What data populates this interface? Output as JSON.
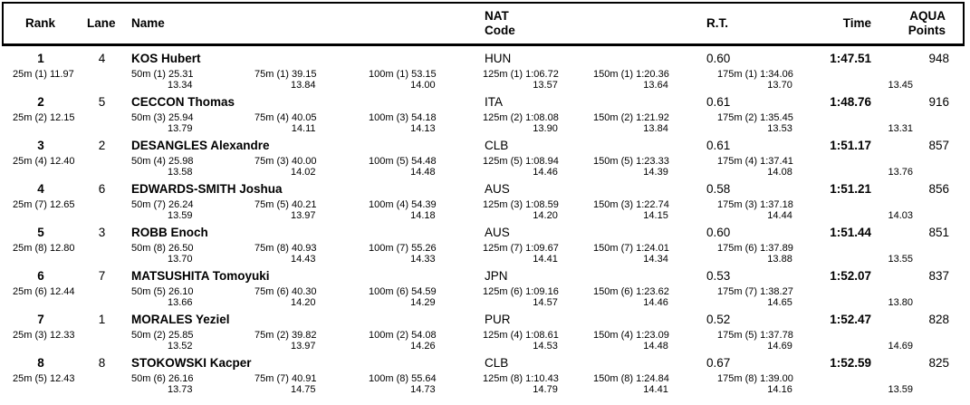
{
  "header": {
    "rank": "Rank",
    "lane": "Lane",
    "name": "Name",
    "nat_line1": "NAT",
    "nat_line2": "Code",
    "rt": "R.T.",
    "time": "Time",
    "points_line1": "AQUA",
    "points_line2": "Points"
  },
  "results": [
    {
      "rank": "1",
      "lane": "4",
      "name": "KOS Hubert",
      "nat": "HUN",
      "rt": "0.60",
      "time": "1:47.51",
      "points": "948",
      "splits": [
        {
          "d": "25m",
          "p": "(1)",
          "t": "11.97",
          "s": ""
        },
        {
          "d": "50m",
          "p": "(1)",
          "t": "25.31",
          "s": "13.34"
        },
        {
          "d": "75m",
          "p": "(1)",
          "t": "39.15",
          "s": "13.84"
        },
        {
          "d": "100m",
          "p": "(1)",
          "t": "53.15",
          "s": "14.00"
        },
        {
          "d": "125m",
          "p": "(1)",
          "t": "1:06.72",
          "s": "13.57"
        },
        {
          "d": "150m",
          "p": "(1)",
          "t": "1:20.36",
          "s": "13.64"
        },
        {
          "d": "175m",
          "p": "(1)",
          "t": "1:34.06",
          "s": "13.70"
        }
      ],
      "last_split": "13.45"
    },
    {
      "rank": "2",
      "lane": "5",
      "name": "CECCON Thomas",
      "nat": "ITA",
      "rt": "0.61",
      "time": "1:48.76",
      "points": "916",
      "splits": [
        {
          "d": "25m",
          "p": "(2)",
          "t": "12.15",
          "s": ""
        },
        {
          "d": "50m",
          "p": "(3)",
          "t": "25.94",
          "s": "13.79"
        },
        {
          "d": "75m",
          "p": "(4)",
          "t": "40.05",
          "s": "14.11"
        },
        {
          "d": "100m",
          "p": "(3)",
          "t": "54.18",
          "s": "14.13"
        },
        {
          "d": "125m",
          "p": "(2)",
          "t": "1:08.08",
          "s": "13.90"
        },
        {
          "d": "150m",
          "p": "(2)",
          "t": "1:21.92",
          "s": "13.84"
        },
        {
          "d": "175m",
          "p": "(2)",
          "t": "1:35.45",
          "s": "13.53"
        }
      ],
      "last_split": "13.31"
    },
    {
      "rank": "3",
      "lane": "2",
      "name": "DESANGLES Alexandre",
      "nat": "CLB",
      "rt": "0.61",
      "time": "1:51.17",
      "points": "857",
      "splits": [
        {
          "d": "25m",
          "p": "(4)",
          "t": "12.40",
          "s": ""
        },
        {
          "d": "50m",
          "p": "(4)",
          "t": "25.98",
          "s": "13.58"
        },
        {
          "d": "75m",
          "p": "(3)",
          "t": "40.00",
          "s": "14.02"
        },
        {
          "d": "100m",
          "p": "(5)",
          "t": "54.48",
          "s": "14.48"
        },
        {
          "d": "125m",
          "p": "(5)",
          "t": "1:08.94",
          "s": "14.46"
        },
        {
          "d": "150m",
          "p": "(5)",
          "t": "1:23.33",
          "s": "14.39"
        },
        {
          "d": "175m",
          "p": "(4)",
          "t": "1:37.41",
          "s": "14.08"
        }
      ],
      "last_split": "13.76"
    },
    {
      "rank": "4",
      "lane": "6",
      "name": "EDWARDS-SMITH Joshua",
      "nat": "AUS",
      "rt": "0.58",
      "time": "1:51.21",
      "points": "856",
      "splits": [
        {
          "d": "25m",
          "p": "(7)",
          "t": "12.65",
          "s": ""
        },
        {
          "d": "50m",
          "p": "(7)",
          "t": "26.24",
          "s": "13.59"
        },
        {
          "d": "75m",
          "p": "(5)",
          "t": "40.21",
          "s": "13.97"
        },
        {
          "d": "100m",
          "p": "(4)",
          "t": "54.39",
          "s": "14.18"
        },
        {
          "d": "125m",
          "p": "(3)",
          "t": "1:08.59",
          "s": "14.20"
        },
        {
          "d": "150m",
          "p": "(3)",
          "t": "1:22.74",
          "s": "14.15"
        },
        {
          "d": "175m",
          "p": "(3)",
          "t": "1:37.18",
          "s": "14.44"
        }
      ],
      "last_split": "14.03"
    },
    {
      "rank": "5",
      "lane": "3",
      "name": "ROBB Enoch",
      "nat": "AUS",
      "rt": "0.60",
      "time": "1:51.44",
      "points": "851",
      "splits": [
        {
          "d": "25m",
          "p": "(8)",
          "t": "12.80",
          "s": ""
        },
        {
          "d": "50m",
          "p": "(8)",
          "t": "26.50",
          "s": "13.70"
        },
        {
          "d": "75m",
          "p": "(8)",
          "t": "40.93",
          "s": "14.43"
        },
        {
          "d": "100m",
          "p": "(7)",
          "t": "55.26",
          "s": "14.33"
        },
        {
          "d": "125m",
          "p": "(7)",
          "t": "1:09.67",
          "s": "14.41"
        },
        {
          "d": "150m",
          "p": "(7)",
          "t": "1:24.01",
          "s": "14.34"
        },
        {
          "d": "175m",
          "p": "(6)",
          "t": "1:37.89",
          "s": "13.88"
        }
      ],
      "last_split": "13.55"
    },
    {
      "rank": "6",
      "lane": "7",
      "name": "MATSUSHITA Tomoyuki",
      "nat": "JPN",
      "rt": "0.53",
      "time": "1:52.07",
      "points": "837",
      "splits": [
        {
          "d": "25m",
          "p": "(6)",
          "t": "12.44",
          "s": ""
        },
        {
          "d": "50m",
          "p": "(5)",
          "t": "26.10",
          "s": "13.66"
        },
        {
          "d": "75m",
          "p": "(6)",
          "t": "40.30",
          "s": "14.20"
        },
        {
          "d": "100m",
          "p": "(6)",
          "t": "54.59",
          "s": "14.29"
        },
        {
          "d": "125m",
          "p": "(6)",
          "t": "1:09.16",
          "s": "14.57"
        },
        {
          "d": "150m",
          "p": "(6)",
          "t": "1:23.62",
          "s": "14.46"
        },
        {
          "d": "175m",
          "p": "(7)",
          "t": "1:38.27",
          "s": "14.65"
        }
      ],
      "last_split": "13.80"
    },
    {
      "rank": "7",
      "lane": "1",
      "name": "MORALES Yeziel",
      "nat": "PUR",
      "rt": "0.52",
      "time": "1:52.47",
      "points": "828",
      "splits": [
        {
          "d": "25m",
          "p": "(3)",
          "t": "12.33",
          "s": ""
        },
        {
          "d": "50m",
          "p": "(2)",
          "t": "25.85",
          "s": "13.52"
        },
        {
          "d": "75m",
          "p": "(2)",
          "t": "39.82",
          "s": "13.97"
        },
        {
          "d": "100m",
          "p": "(2)",
          "t": "54.08",
          "s": "14.26"
        },
        {
          "d": "125m",
          "p": "(4)",
          "t": "1:08.61",
          "s": "14.53"
        },
        {
          "d": "150m",
          "p": "(4)",
          "t": "1:23.09",
          "s": "14.48"
        },
        {
          "d": "175m",
          "p": "(5)",
          "t": "1:37.78",
          "s": "14.69"
        }
      ],
      "last_split": "14.69"
    },
    {
      "rank": "8",
      "lane": "8",
      "name": "STOKOWSKI Kacper",
      "nat": "CLB",
      "rt": "0.67",
      "time": "1:52.59",
      "points": "825",
      "splits": [
        {
          "d": "25m",
          "p": "(5)",
          "t": "12.43",
          "s": ""
        },
        {
          "d": "50m",
          "p": "(6)",
          "t": "26.16",
          "s": "13.73"
        },
        {
          "d": "75m",
          "p": "(7)",
          "t": "40.91",
          "s": "14.75"
        },
        {
          "d": "100m",
          "p": "(8)",
          "t": "55.64",
          "s": "14.73"
        },
        {
          "d": "125m",
          "p": "(8)",
          "t": "1:10.43",
          "s": "14.79"
        },
        {
          "d": "150m",
          "p": "(8)",
          "t": "1:24.84",
          "s": "14.41"
        },
        {
          "d": "175m",
          "p": "(8)",
          "t": "1:39.00",
          "s": "14.16"
        }
      ],
      "last_split": "13.59"
    }
  ]
}
